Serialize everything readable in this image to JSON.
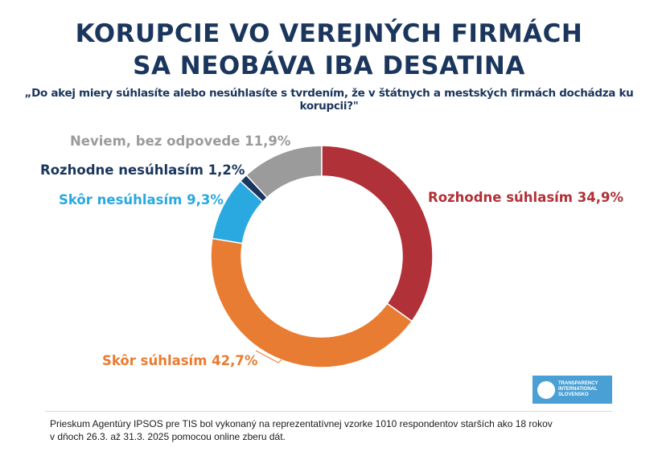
{
  "chart_data": {
    "type": "pie",
    "donut": true,
    "title": "KORUPCIE VO VEREJNÝCH FIRMÁCH SA NEOBÁVA IBA DESATINA",
    "title_lines": [
      "KORUPCIE VO VEREJNÝCH FIRMÁCH",
      "SA NEOBÁVA IBA DESATINA"
    ],
    "subtitle": "„Do akej miery súhlasíte alebo nesúhlasíte s tvrdením, že v štátnych a mestských firmách dochádza ku korupcii?\"",
    "slices": [
      {
        "name": "Rozhodne súhlasím",
        "value": 34.9,
        "label": "Rozhodne súhlasím 34,9%",
        "color": "#b03137"
      },
      {
        "name": "Skôr súhlasím",
        "value": 42.7,
        "label": "Skôr súhlasím 42,7%",
        "color": "#e97c33"
      },
      {
        "name": "Skôr nesúhlasím",
        "value": 9.3,
        "label": "Skôr nesúhlasím 9,3%",
        "color": "#29a9e0"
      },
      {
        "name": "Rozhodne nesúhlasím",
        "value": 1.2,
        "label": "Rozhodne nesúhlasím 1,2%",
        "color": "#1b365d"
      },
      {
        "name": "Neviem, bez odpovede",
        "value": 11.9,
        "label": "Neviem, bez odpovede 11,9%",
        "color": "#9b9b9b"
      }
    ]
  },
  "footer": {
    "note_line1": "Prieskum Agentúry IPSOS pre TIS bol vykonaný na reprezentatívnej vzorke 1010 respondentov starších ako 18 rokov",
    "note_line2": "v dňoch 26.3. až 31.3. 2025 pomocou online zberu dát.",
    "logo_lines": [
      "TRANSPARENCY",
      "INTERNATIONAL",
      "SLOVENSKO"
    ]
  }
}
